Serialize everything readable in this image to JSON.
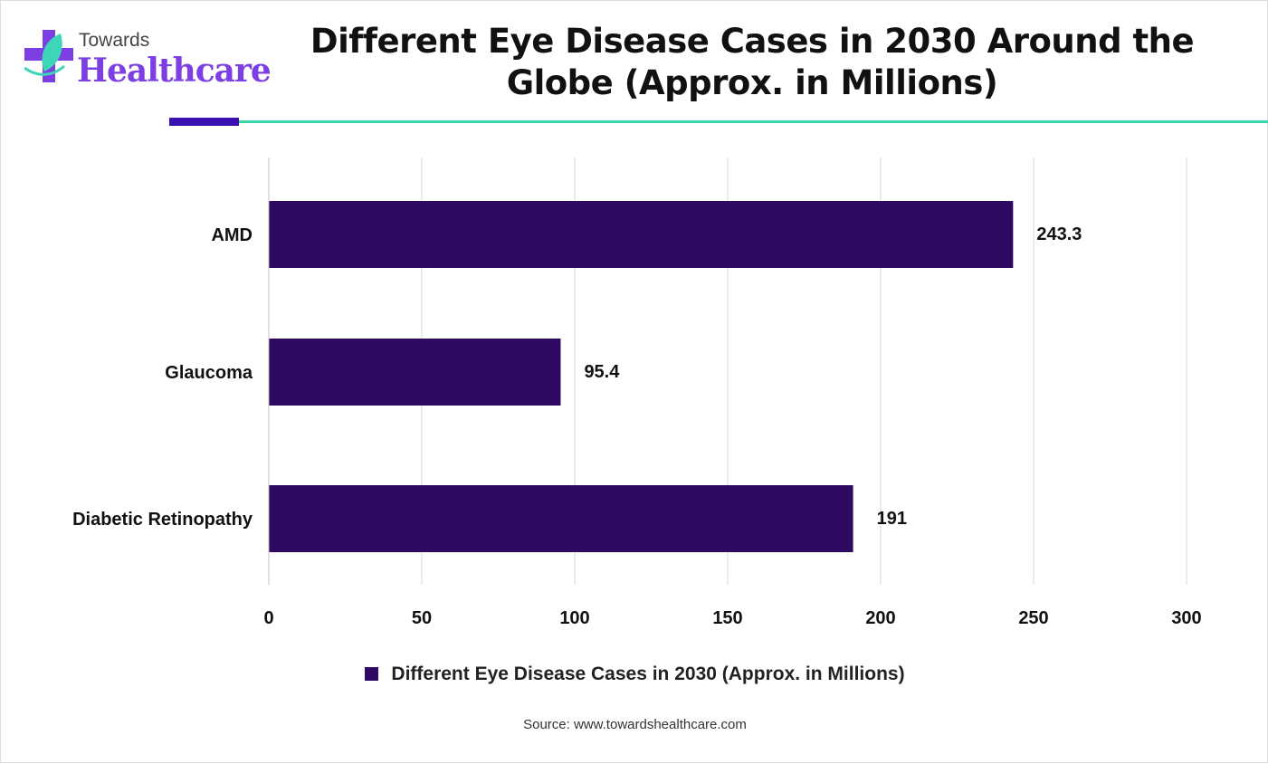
{
  "logo": {
    "line1": "Towards",
    "line2": "Healthcare"
  },
  "chart_data": {
    "type": "bar",
    "orientation": "horizontal",
    "title": "Different Eye Disease Cases in 2030 Around the Globe (Approx. in Millions)",
    "categories": [
      "AMD",
      "Glaucoma",
      "Diabetic Retinopathy"
    ],
    "values": [
      243.3,
      95.4,
      191
    ],
    "data_labels": [
      "243.3",
      "95.4",
      "191"
    ],
    "xlim": [
      0,
      300
    ],
    "xticks": [
      "0",
      "50",
      "100",
      "150",
      "200",
      "250",
      "300"
    ],
    "xlabel": "",
    "ylabel": "",
    "grid": true,
    "legend": {
      "placement": "bottom",
      "entries": [
        "Different Eye Disease Cases in 2030 (Approx. in Millions)"
      ]
    },
    "bar_color": "#2e0a63"
  },
  "source": "Source: www.towardshealthcare.com"
}
